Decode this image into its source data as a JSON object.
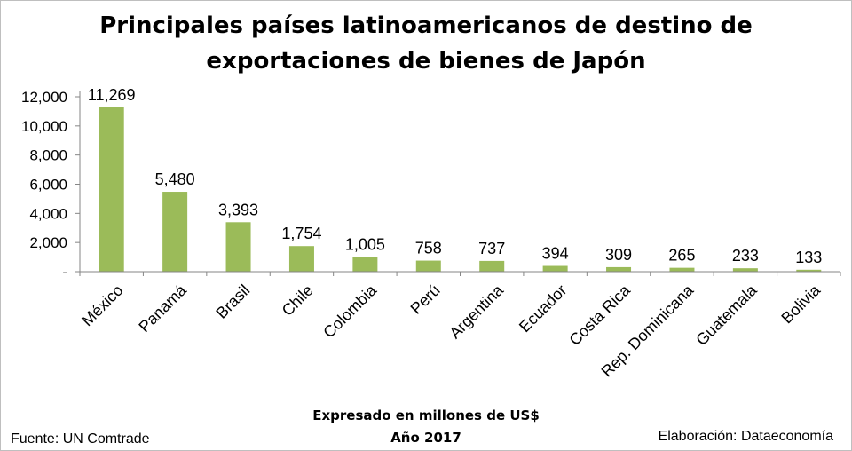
{
  "chart_data": {
    "type": "bar",
    "title": [
      "Principales países latinoamericanos de destino de",
      "exportaciones de bienes de Japón"
    ],
    "categories": [
      "México",
      "Panamá",
      "Brasil",
      "Chile",
      "Colombia",
      "Perú",
      "Argentina",
      "Ecuador",
      "Costa Rica",
      "Rep. Dominicana",
      "Guatemala",
      "Bolivia"
    ],
    "values": [
      11269,
      5480,
      3393,
      1754,
      1005,
      758,
      737,
      394,
      309,
      265,
      233,
      133
    ],
    "value_labels": [
      "11,269",
      "5,480",
      "3,393",
      "1,754",
      "1,005",
      "758",
      "737",
      "394",
      "309",
      "265",
      "233",
      "133"
    ],
    "yticks": [
      0,
      2000,
      4000,
      6000,
      8000,
      10000,
      12000
    ],
    "ytick_labels": [
      "-",
      "2,000",
      "4,000",
      "6,000",
      "8,000",
      "10,000",
      "12,000"
    ],
    "ylim": [
      0,
      12000
    ],
    "bar_color": "#9bbb59",
    "grid": false,
    "legend": false
  },
  "notes": {
    "line1": "Expresado en millones de US$",
    "line2": "Año 2017"
  },
  "footer": {
    "source": "Fuente: UN Comtrade",
    "credit": "Elaboración: Dataeconomía"
  }
}
